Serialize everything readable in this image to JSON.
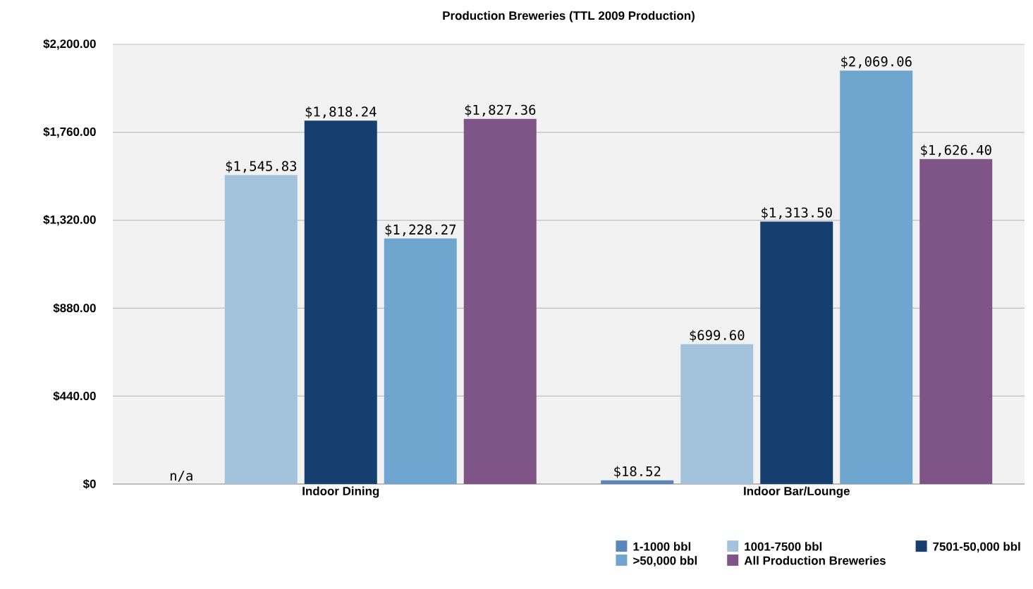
{
  "chart_data": {
    "type": "bar",
    "title": "Production Breweries (TTL 2009 Production)",
    "categories": [
      "Indoor Dining",
      "Indoor Bar/Lounge"
    ],
    "series": [
      {
        "name": "1-1000 bbl",
        "color": "#5b86ba",
        "values": [
          null,
          18.52
        ],
        "value_labels": [
          "n/a",
          "$18.52"
        ]
      },
      {
        "name": "1001-7500 bbl",
        "color": "#a3c3dc",
        "values": [
          1545.83,
          699.6
        ],
        "value_labels": [
          "$1,545.83",
          "$699.60"
        ]
      },
      {
        "name": "7501-50,000 bbl",
        "color": "#153f6e",
        "values": [
          1818.24,
          1313.5
        ],
        "value_labels": [
          "$1,818.24",
          "$1,313.50"
        ]
      },
      {
        "name": ">50,000 bbl",
        "color": "#6fa6cf",
        "values": [
          1228.27,
          2069.06
        ],
        "value_labels": [
          "$1,228.27",
          "$2,069.06"
        ]
      },
      {
        "name": "All Production Breweries",
        "color": "#7f5487",
        "values": [
          1827.36,
          1626.4
        ],
        "value_labels": [
          "$1,827.36",
          "$1,626.40"
        ]
      }
    ],
    "ylim": [
      0,
      2200
    ],
    "yticks": [
      {
        "value": 0,
        "label": "$0"
      },
      {
        "value": 440,
        "label": "$440.00"
      },
      {
        "value": 880,
        "label": "$880.00"
      },
      {
        "value": 1320,
        "label": "$1,320.00"
      },
      {
        "value": 1760,
        "label": "$1,760.00"
      },
      {
        "value": 2200,
        "label": "$2,200.00"
      }
    ],
    "grid": "y",
    "legend": "bottom right"
  }
}
